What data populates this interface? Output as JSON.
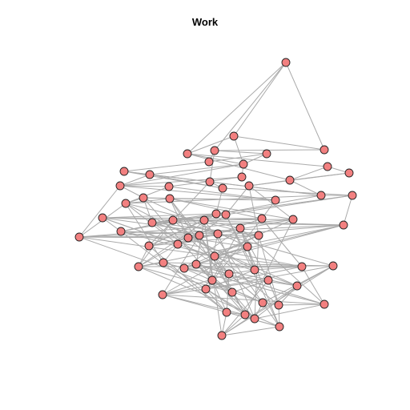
{
  "title": "Work",
  "colors": {
    "node_fill": "#f28080",
    "node_stroke": "#222222",
    "edge": "#aaaaaa",
    "background": "#ffffff"
  },
  "graph": {
    "node_count": 67,
    "edges": [
      [
        0,
        1
      ],
      [
        0,
        2
      ],
      [
        0,
        3
      ],
      [
        0,
        4
      ],
      [
        1,
        3
      ],
      [
        1,
        2
      ],
      [
        2,
        4
      ],
      [
        2,
        8
      ],
      [
        3,
        6
      ],
      [
        3,
        5
      ],
      [
        4,
        7
      ],
      [
        4,
        11
      ],
      [
        5,
        8
      ],
      [
        5,
        6
      ],
      [
        6,
        9
      ],
      [
        7,
        11
      ],
      [
        7,
        10
      ],
      [
        8,
        12
      ],
      [
        8,
        13
      ],
      [
        8,
        15
      ],
      [
        9,
        12
      ],
      [
        9,
        14
      ],
      [
        10,
        11
      ],
      [
        10,
        18
      ],
      [
        11,
        18
      ],
      [
        12,
        15
      ],
      [
        12,
        20
      ],
      [
        13,
        15
      ],
      [
        13,
        16
      ],
      [
        14,
        17
      ],
      [
        14,
        20
      ],
      [
        15,
        16
      ],
      [
        15,
        19
      ],
      [
        16,
        19
      ],
      [
        16,
        24
      ],
      [
        17,
        25
      ],
      [
        17,
        21
      ],
      [
        18,
        28
      ],
      [
        18,
        26
      ],
      [
        19,
        22
      ],
      [
        19,
        23
      ],
      [
        20,
        21
      ],
      [
        20,
        24
      ],
      [
        21,
        26
      ],
      [
        21,
        25
      ],
      [
        22,
        23
      ],
      [
        22,
        24
      ],
      [
        23,
        24
      ],
      [
        23,
        28
      ],
      [
        25,
        29
      ],
      [
        25,
        30
      ],
      [
        26,
        30
      ],
      [
        26,
        31
      ],
      [
        27,
        29
      ],
      [
        27,
        30
      ],
      [
        28,
        31
      ],
      [
        29,
        32
      ],
      [
        29,
        33
      ],
      [
        30,
        32
      ],
      [
        31,
        33
      ],
      [
        31,
        34
      ],
      [
        32,
        35
      ],
      [
        32,
        36
      ],
      [
        33,
        34
      ],
      [
        33,
        37
      ],
      [
        34,
        38
      ],
      [
        35,
        39
      ],
      [
        35,
        36
      ],
      [
        36,
        41
      ],
      [
        37,
        40
      ],
      [
        37,
        38
      ],
      [
        38,
        43
      ],
      [
        39,
        42
      ],
      [
        39,
        40
      ],
      [
        40,
        44
      ],
      [
        41,
        45
      ],
      [
        41,
        42
      ],
      [
        42,
        46
      ],
      [
        43,
        44
      ],
      [
        43,
        47
      ],
      [
        44,
        48
      ],
      [
        45,
        49
      ],
      [
        45,
        46
      ],
      [
        46,
        47
      ],
      [
        47,
        50
      ],
      [
        48,
        51
      ],
      [
        48,
        50
      ],
      [
        49,
        52
      ],
      [
        49,
        53
      ],
      [
        50,
        54
      ],
      [
        51,
        55
      ],
      [
        51,
        52
      ],
      [
        52,
        56
      ],
      [
        53,
        57
      ],
      [
        53,
        54
      ],
      [
        54,
        58
      ],
      [
        55,
        59
      ],
      [
        55,
        56
      ],
      [
        56,
        60
      ],
      [
        57,
        61
      ],
      [
        57,
        58
      ],
      [
        58,
        62
      ],
      [
        59,
        63
      ],
      [
        59,
        60
      ],
      [
        60,
        64
      ],
      [
        61,
        65
      ],
      [
        61,
        62
      ],
      [
        62,
        66
      ],
      [
        63,
        64
      ],
      [
        63,
        65
      ],
      [
        64,
        66
      ],
      [
        3,
        14
      ],
      [
        4,
        8
      ],
      [
        15,
        22
      ],
      [
        19,
        27
      ],
      [
        20,
        33
      ],
      [
        23,
        36
      ],
      [
        24,
        35
      ],
      [
        27,
        34
      ],
      [
        28,
        40
      ],
      [
        29,
        34
      ],
      [
        30,
        37
      ],
      [
        35,
        42
      ],
      [
        36,
        38
      ],
      [
        38,
        44
      ],
      [
        41,
        47
      ],
      [
        43,
        48
      ],
      [
        45,
        51
      ],
      [
        46,
        52
      ],
      [
        47,
        53
      ],
      [
        48,
        53
      ],
      [
        49,
        55
      ],
      [
        50,
        57
      ],
      [
        51,
        56
      ],
      [
        52,
        58
      ],
      [
        54,
        59
      ],
      [
        55,
        60
      ],
      [
        56,
        61
      ],
      [
        57,
        62
      ],
      [
        58,
        63
      ],
      [
        59,
        64
      ],
      [
        60,
        65
      ],
      [
        61,
        66
      ],
      [
        62,
        64
      ],
      [
        63,
        66
      ],
      [
        22,
        41
      ],
      [
        23,
        49
      ],
      [
        24,
        45
      ],
      [
        26,
        37
      ],
      [
        28,
        47
      ],
      [
        30,
        39
      ],
      [
        31,
        44
      ],
      [
        32,
        42
      ],
      [
        33,
        46
      ],
      [
        34,
        51
      ],
      [
        36,
        50
      ],
      [
        37,
        52
      ],
      [
        39,
        54
      ],
      [
        40,
        55
      ],
      [
        42,
        56
      ],
      [
        43,
        57
      ],
      [
        44,
        61
      ],
      [
        46,
        58
      ],
      [
        47,
        63
      ],
      [
        48,
        60
      ],
      [
        49,
        62
      ],
      [
        50,
        62
      ],
      [
        51,
        65
      ],
      [
        52,
        59
      ],
      [
        53,
        66
      ],
      [
        54,
        65
      ],
      [
        44,
        32
      ],
      [
        43,
        24
      ],
      [
        39,
        18
      ],
      [
        38,
        24
      ],
      [
        20,
        11
      ],
      [
        23,
        27
      ],
      [
        28,
        35
      ],
      [
        21,
        32
      ],
      [
        25,
        40
      ],
      [
        12,
        17
      ],
      [
        9,
        17
      ],
      [
        14,
        40
      ],
      [
        22,
        30
      ],
      [
        15,
        35
      ],
      [
        29,
        38
      ],
      [
        26,
        45
      ],
      [
        33,
        42
      ],
      [
        41,
        52
      ],
      [
        27,
        51
      ],
      [
        28,
        56
      ],
      [
        45,
        63
      ],
      [
        36,
        53
      ],
      [
        34,
        57
      ],
      [
        50,
        60
      ],
      [
        55,
        66
      ],
      [
        31,
        48
      ],
      [
        37,
        61
      ],
      [
        40,
        64
      ],
      [
        44,
        59
      ],
      [
        30,
        49
      ],
      [
        39,
        57
      ],
      [
        32,
        62
      ],
      [
        43,
        58
      ],
      [
        41,
        63
      ],
      [
        25,
        44
      ],
      [
        27,
        46
      ],
      [
        29,
        50
      ],
      [
        35,
        53
      ],
      [
        33,
        55
      ],
      [
        24,
        39
      ],
      [
        26,
        59
      ],
      [
        22,
        56
      ],
      [
        23,
        61
      ],
      [
        31,
        54
      ]
    ]
  }
}
